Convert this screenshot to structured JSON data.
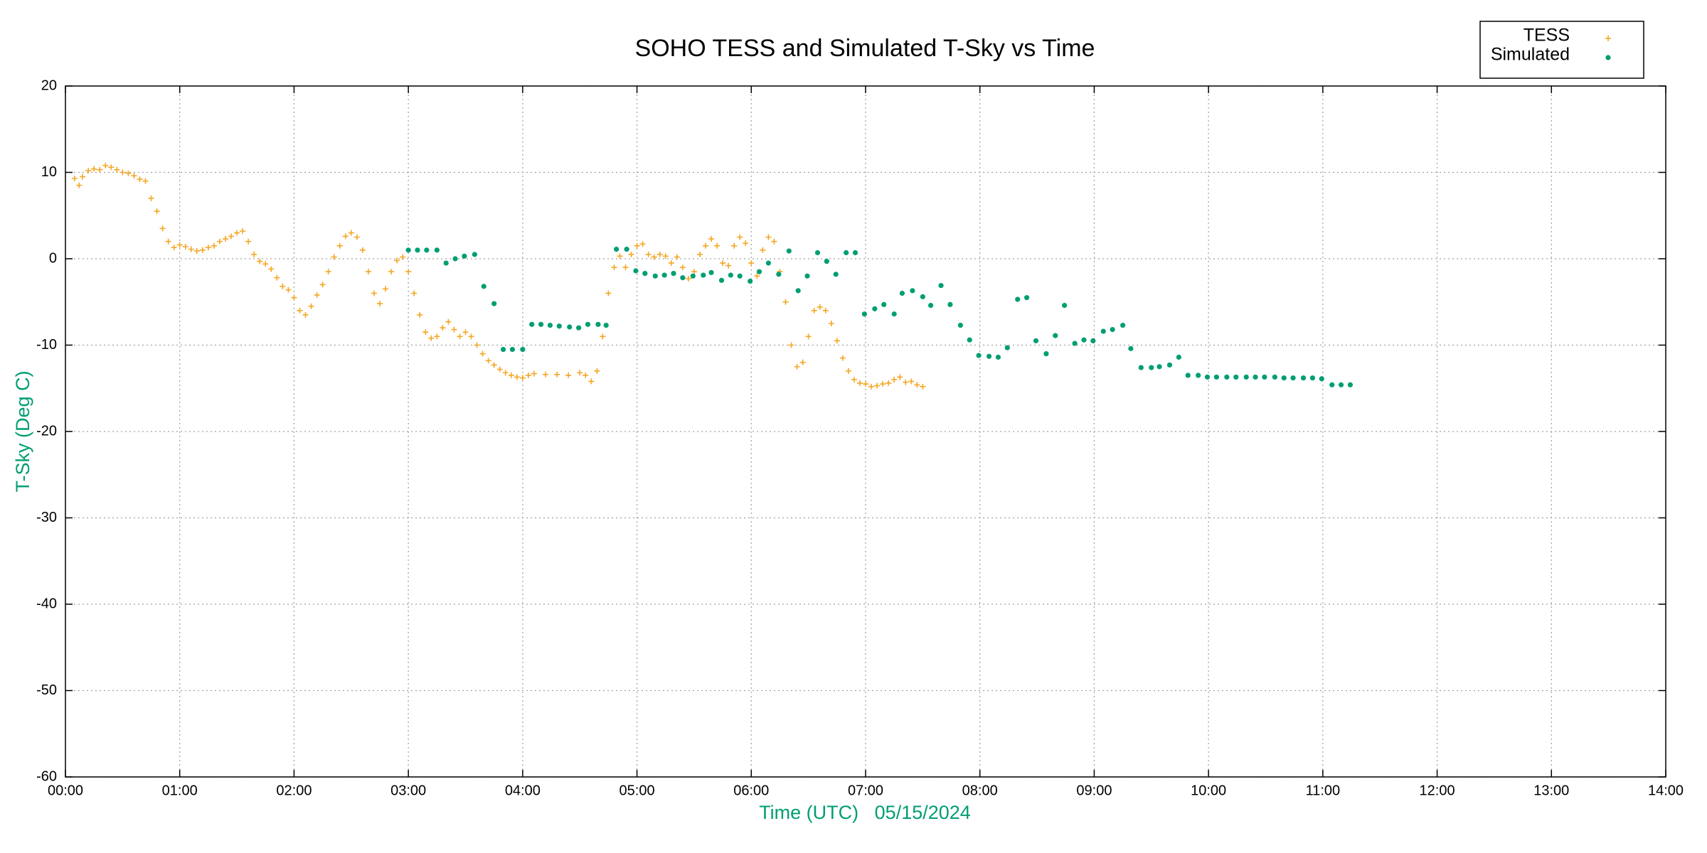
{
  "chart_data": {
    "type": "scatter",
    "title": "SOHO TESS and Simulated T-Sky vs Time",
    "x_label": "Time (UTC)   05/15/2024",
    "y_label": "T-Sky (Deg C)",
    "xlim": [
      0,
      14
    ],
    "ylim": [
      -60,
      20
    ],
    "xticks": [
      {
        "value": 0,
        "label": "00:00"
      },
      {
        "value": 1,
        "label": "01:00"
      },
      {
        "value": 2,
        "label": "02:00"
      },
      {
        "value": 3,
        "label": "03:00"
      },
      {
        "value": 4,
        "label": "04:00"
      },
      {
        "value": 5,
        "label": "05:00"
      },
      {
        "value": 6,
        "label": "06:00"
      },
      {
        "value": 7,
        "label": "07:00"
      },
      {
        "value": 8,
        "label": "08:00"
      },
      {
        "value": 9,
        "label": "09:00"
      },
      {
        "value": 10,
        "label": "10:00"
      },
      {
        "value": 11,
        "label": "11:00"
      },
      {
        "value": 12,
        "label": "12:00"
      },
      {
        "value": 13,
        "label": "13:00"
      },
      {
        "value": 14,
        "label": "14:00"
      }
    ],
    "yticks": [
      -60,
      -50,
      -40,
      -30,
      -20,
      -10,
      0,
      10,
      20
    ],
    "grid": true,
    "legend": "top-right",
    "series": [
      {
        "name": "TESS",
        "color": "#f5a623",
        "marker": "plus",
        "x": [
          0.08,
          0.12,
          0.15,
          0.2,
          0.25,
          0.3,
          0.35,
          0.4,
          0.45,
          0.5,
          0.55,
          0.6,
          0.65,
          0.7,
          0.75,
          0.8,
          0.85,
          0.9,
          0.95,
          1.0,
          1.05,
          1.1,
          1.15,
          1.2,
          1.25,
          1.3,
          1.35,
          1.4,
          1.45,
          1.5,
          1.55,
          1.6,
          1.65,
          1.7,
          1.75,
          1.8,
          1.85,
          1.9,
          1.95,
          2.0,
          2.05,
          2.1,
          2.15,
          2.2,
          2.25,
          2.3,
          2.35,
          2.4,
          2.45,
          2.5,
          2.55,
          2.6,
          2.65,
          2.7,
          2.75,
          2.8,
          2.85,
          2.9,
          2.95,
          3.0,
          3.05,
          3.1,
          3.15,
          3.2,
          3.25,
          3.3,
          3.35,
          3.4,
          3.45,
          3.5,
          3.55,
          3.6,
          3.65,
          3.7,
          3.75,
          3.8,
          3.85,
          3.9,
          3.95,
          4.0,
          4.05,
          4.1,
          4.2,
          4.3,
          4.4,
          4.5,
          4.55,
          4.6,
          4.65,
          4.7,
          4.75,
          4.8,
          4.85,
          4.9,
          4.95,
          5.0,
          5.05,
          5.1,
          5.15,
          5.2,
          5.25,
          5.3,
          5.35,
          5.4,
          5.45,
          5.5,
          5.55,
          5.6,
          5.65,
          5.7,
          5.75,
          5.8,
          5.85,
          5.9,
          5.95,
          6.0,
          6.05,
          6.1,
          6.15,
          6.2,
          6.25,
          6.3,
          6.35,
          6.4,
          6.45,
          6.5,
          6.55,
          6.6,
          6.65,
          6.7,
          6.75,
          6.8,
          6.85,
          6.9,
          6.95,
          7.0,
          7.05,
          7.1,
          7.15,
          7.2,
          7.25,
          7.3,
          7.35,
          7.4,
          7.45,
          7.5
        ],
        "values": [
          9.3,
          8.5,
          9.5,
          10.2,
          10.4,
          10.3,
          10.8,
          10.6,
          10.3,
          10.0,
          9.9,
          9.6,
          9.2,
          9.0,
          7.0,
          5.5,
          3.5,
          2.0,
          1.3,
          1.6,
          1.4,
          1.1,
          0.9,
          1.0,
          1.3,
          1.5,
          2.0,
          2.3,
          2.6,
          3.0,
          3.2,
          2.0,
          0.5,
          -0.3,
          -0.6,
          -1.2,
          -2.2,
          -3.2,
          -3.6,
          -4.5,
          -6.0,
          -6.5,
          -5.5,
          -4.2,
          -3.0,
          -1.5,
          0.2,
          1.5,
          2.6,
          3.0,
          2.5,
          1.0,
          -1.5,
          -4.0,
          -5.2,
          -3.5,
          -1.5,
          -0.2,
          0.2,
          -1.5,
          -4.0,
          -6.5,
          -8.5,
          -9.2,
          -9.0,
          -8.0,
          -7.3,
          -8.2,
          -9.0,
          -8.5,
          -9.0,
          -10.0,
          -11.0,
          -11.8,
          -12.3,
          -12.8,
          -13.2,
          -13.5,
          -13.7,
          -13.8,
          -13.5,
          -13.3,
          -13.4,
          -13.4,
          -13.5,
          -13.2,
          -13.5,
          -14.2,
          -13.0,
          -9.0,
          -4.0,
          -1.0,
          0.3,
          -1.0,
          0.5,
          1.5,
          1.7,
          0.5,
          0.2,
          0.5,
          0.3,
          -0.5,
          0.2,
          -1.0,
          -2.3,
          -1.5,
          0.5,
          1.5,
          2.3,
          1.5,
          -0.5,
          -0.8,
          1.5,
          2.5,
          1.8,
          -0.5,
          -2.0,
          1.0,
          2.5,
          2.0,
          -1.5,
          -5.0,
          -10.0,
          -12.5,
          -12.0,
          -9.0,
          -6.0,
          -5.6,
          -6.0,
          -7.5,
          -9.5,
          -11.5,
          -13.0,
          -14.0,
          -14.4,
          -14.5,
          -14.8,
          -14.7,
          -14.5,
          -14.4,
          -14.0,
          -13.7,
          -14.3,
          -14.2,
          -14.6,
          -14.8
        ]
      },
      {
        "name": "Simulated",
        "color": "#009e73",
        "marker": "dot",
        "x": [
          3.0,
          3.08,
          3.16,
          3.25,
          3.33,
          3.41,
          3.49,
          3.58,
          3.66,
          3.75,
          3.83,
          3.91,
          4.0,
          4.08,
          4.16,
          4.24,
          4.32,
          4.41,
          4.49,
          4.57,
          4.66,
          4.73,
          4.82,
          4.91,
          4.99,
          5.07,
          5.16,
          5.24,
          5.32,
          5.4,
          5.49,
          5.58,
          5.65,
          5.74,
          5.82,
          5.9,
          5.99,
          6.07,
          6.15,
          6.24,
          6.33,
          6.41,
          6.49,
          6.58,
          6.66,
          6.74,
          6.83,
          6.91,
          6.99,
          7.08,
          7.16,
          7.25,
          7.32,
          7.41,
          7.5,
          7.57,
          7.66,
          7.74,
          7.83,
          7.91,
          7.99,
          8.08,
          8.16,
          8.24,
          8.33,
          8.41,
          8.49,
          8.58,
          8.66,
          8.74,
          8.83,
          8.91,
          8.99,
          9.08,
          9.16,
          9.25,
          9.32,
          9.41,
          9.5,
          9.57,
          9.66,
          9.74,
          9.82,
          9.91,
          9.99,
          10.07,
          10.16,
          10.24,
          10.33,
          10.41,
          10.49,
          10.58,
          10.66,
          10.74,
          10.83,
          10.91,
          10.99,
          11.08,
          11.16,
          11.24
        ],
        "values": [
          1.0,
          1.0,
          1.0,
          1.0,
          -0.5,
          0.0,
          0.3,
          0.5,
          -3.2,
          -5.2,
          -10.5,
          -10.5,
          -10.5,
          -7.6,
          -7.6,
          -7.7,
          -7.8,
          -7.9,
          -8.0,
          -7.6,
          -7.6,
          -7.7,
          1.1,
          1.1,
          -1.4,
          -1.7,
          -2.0,
          -1.9,
          -1.7,
          -2.2,
          -2.0,
          -1.9,
          -1.6,
          -2.5,
          -1.9,
          -2.0,
          -2.6,
          -1.5,
          -0.5,
          -1.8,
          0.9,
          -3.7,
          -2.0,
          0.7,
          -0.3,
          -1.8,
          0.7,
          0.7,
          -6.4,
          -5.8,
          -5.3,
          -6.4,
          -4.0,
          -3.7,
          -4.4,
          -5.4,
          -3.1,
          -5.3,
          -7.7,
          -9.4,
          -11.2,
          -11.3,
          -11.4,
          -10.3,
          -4.7,
          -4.5,
          -9.5,
          -11.0,
          -8.9,
          -5.4,
          -9.8,
          -9.4,
          -9.5,
          -8.4,
          -8.2,
          -7.7,
          -10.4,
          -12.6,
          -12.6,
          -12.5,
          -12.3,
          -11.4,
          -13.5,
          -13.5,
          -13.7,
          -13.7,
          -13.7,
          -13.7,
          -13.7,
          -13.7,
          -13.7,
          -13.7,
          -13.8,
          -13.8,
          -13.8,
          -13.8,
          -13.9,
          -14.6,
          -14.6,
          -14.6
        ]
      }
    ]
  }
}
